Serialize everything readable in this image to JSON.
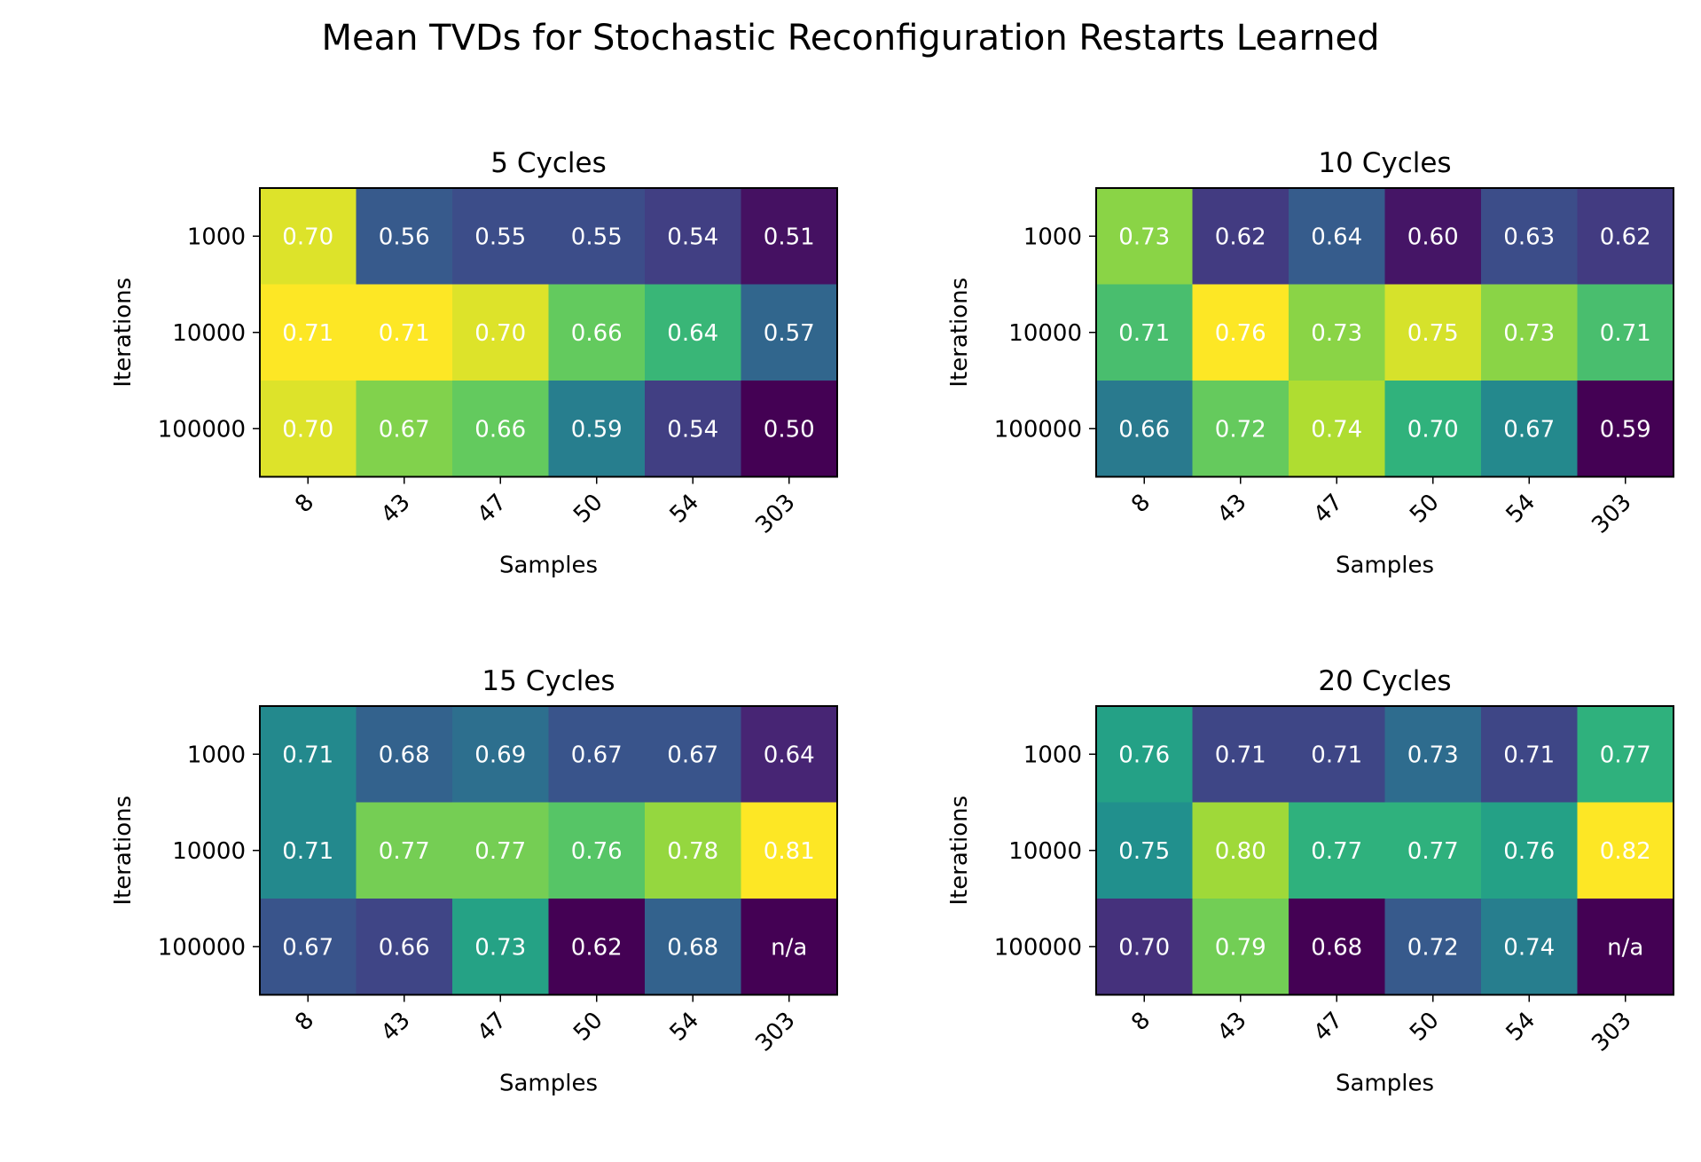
{
  "figure": {
    "title": "Mean TVDs for Stochastic Reconfiguration Restarts Learned"
  },
  "chart_data": [
    {
      "type": "heatmap",
      "title": "5 Cycles",
      "xlabel": "Samples",
      "ylabel": "Iterations",
      "x_categories": [
        "8",
        "43",
        "47",
        "50",
        "54",
        "303"
      ],
      "y_categories": [
        "1000",
        "10000",
        "100000"
      ],
      "values": [
        [
          0.7,
          0.56,
          0.55,
          0.55,
          0.54,
          0.51
        ],
        [
          0.71,
          0.71,
          0.7,
          0.66,
          0.64,
          0.57
        ],
        [
          0.7,
          0.67,
          0.66,
          0.59,
          0.54,
          0.5
        ]
      ],
      "labels": [
        [
          "0.70",
          "0.56",
          "0.55",
          "0.55",
          "0.54",
          "0.51"
        ],
        [
          "0.71",
          "0.71",
          "0.70",
          "0.66",
          "0.64",
          "0.57"
        ],
        [
          "0.70",
          "0.67",
          "0.66",
          "0.59",
          "0.54",
          "0.50"
        ]
      ],
      "colormap": "viridis",
      "grid": false
    },
    {
      "type": "heatmap",
      "title": "10 Cycles",
      "xlabel": "Samples",
      "ylabel": "Iterations",
      "x_categories": [
        "8",
        "43",
        "47",
        "50",
        "54",
        "303"
      ],
      "y_categories": [
        "1000",
        "10000",
        "100000"
      ],
      "values": [
        [
          0.73,
          0.62,
          0.64,
          0.6,
          0.63,
          0.62
        ],
        [
          0.71,
          0.76,
          0.73,
          0.75,
          0.73,
          0.71
        ],
        [
          0.66,
          0.72,
          0.74,
          0.7,
          0.67,
          0.59
        ]
      ],
      "labels": [
        [
          "0.73",
          "0.62",
          "0.64",
          "0.60",
          "0.63",
          "0.62"
        ],
        [
          "0.71",
          "0.76",
          "0.73",
          "0.75",
          "0.73",
          "0.71"
        ],
        [
          "0.66",
          "0.72",
          "0.74",
          "0.70",
          "0.67",
          "0.59"
        ]
      ],
      "colormap": "viridis",
      "grid": false
    },
    {
      "type": "heatmap",
      "title": "15 Cycles",
      "xlabel": "Samples",
      "ylabel": "Iterations",
      "x_categories": [
        "8",
        "43",
        "47",
        "50",
        "54",
        "303"
      ],
      "y_categories": [
        "1000",
        "10000",
        "100000"
      ],
      "values": [
        [
          0.71,
          0.68,
          0.69,
          0.67,
          0.67,
          0.64
        ],
        [
          0.71,
          0.77,
          0.77,
          0.76,
          0.78,
          0.81
        ],
        [
          0.67,
          0.66,
          0.73,
          0.62,
          0.68,
          null
        ]
      ],
      "labels": [
        [
          "0.71",
          "0.68",
          "0.69",
          "0.67",
          "0.67",
          "0.64"
        ],
        [
          "0.71",
          "0.77",
          "0.77",
          "0.76",
          "0.78",
          "0.81"
        ],
        [
          "0.67",
          "0.66",
          "0.73",
          "0.62",
          "0.68",
          "n/a"
        ]
      ],
      "colormap": "viridis",
      "grid": false
    },
    {
      "type": "heatmap",
      "title": "20 Cycles",
      "xlabel": "Samples",
      "ylabel": "Iterations",
      "x_categories": [
        "8",
        "43",
        "47",
        "50",
        "54",
        "303"
      ],
      "y_categories": [
        "1000",
        "10000",
        "100000"
      ],
      "values": [
        [
          0.76,
          0.71,
          0.71,
          0.73,
          0.71,
          0.77
        ],
        [
          0.75,
          0.8,
          0.77,
          0.77,
          0.76,
          0.82
        ],
        [
          0.7,
          0.79,
          0.68,
          0.72,
          0.74,
          null
        ]
      ],
      "labels": [
        [
          "0.76",
          "0.71",
          "0.71",
          "0.73",
          "0.71",
          "0.77"
        ],
        [
          "0.75",
          "0.80",
          "0.77",
          "0.77",
          "0.76",
          "0.82"
        ],
        [
          "0.70",
          "0.79",
          "0.68",
          "0.72",
          "0.74",
          "n/a"
        ]
      ],
      "colormap": "viridis",
      "grid": false
    }
  ]
}
